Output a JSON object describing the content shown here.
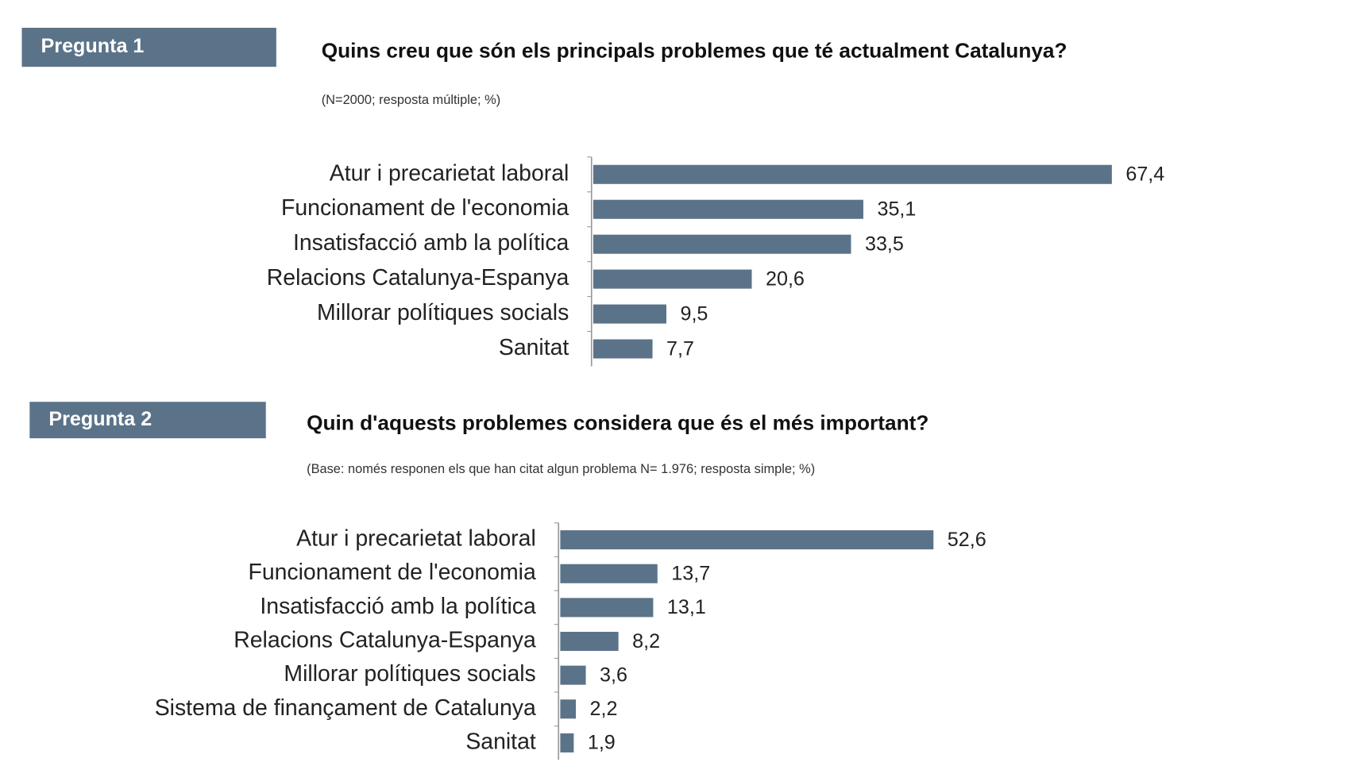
{
  "chart_data": [
    {
      "type": "bar",
      "badge": "Pregunta 1",
      "title": "Quins creu que són els principals problemes que té actualment Catalunya?",
      "subtitle": "(N=2000; resposta múltiple; %)",
      "categories": [
        "Atur i precarietat laboral",
        "Funcionament de l'economia",
        "Insatisfacció amb la política",
        "Relacions Catalunya-Espanya",
        "Millorar polítiques socials",
        "Sanitat"
      ],
      "values": [
        67.4,
        35.1,
        33.5,
        20.6,
        9.5,
        7.7
      ],
      "value_labels": [
        "67,4",
        "35,1",
        "33,5",
        "20,6",
        "9,5",
        "7,7"
      ],
      "color": "#5b7389"
    },
    {
      "type": "bar",
      "badge": "Pregunta 2",
      "title": "Quin d'aquests problemes considera que és el més important?",
      "subtitle": "(Base: només responen els que han citat algun problema N= 1.976; resposta simple; %)",
      "categories": [
        "Atur i precarietat laboral",
        "Funcionament de l'economia",
        "Insatisfacció amb la política",
        "Relacions Catalunya-Espanya",
        "Millorar polítiques socials",
        "Sistema de finançament de Catalunya",
        "Sanitat"
      ],
      "values": [
        52.6,
        13.7,
        13.1,
        8.2,
        3.6,
        2.2,
        1.9
      ],
      "value_labels": [
        "52,6",
        "13,7",
        "13,1",
        "8,2",
        "3,6",
        "2,2",
        "1,9"
      ],
      "color": "#5b7389"
    }
  ]
}
